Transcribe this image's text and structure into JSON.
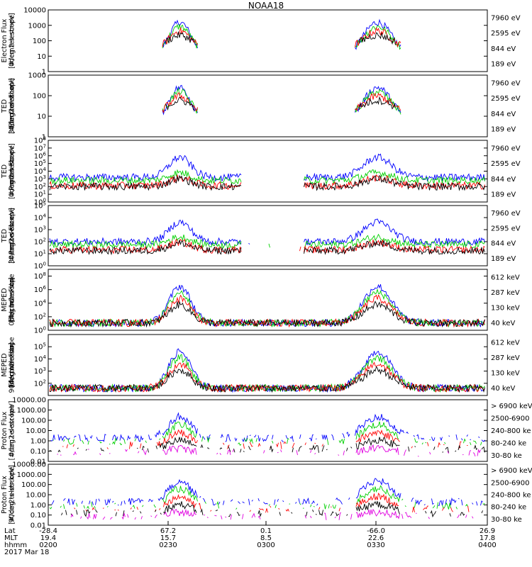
{
  "chart_data": {
    "type": "line",
    "title": "NOAA18",
    "x_axis": {
      "rows": [
        {
          "label": "Lat",
          "values": [
            "-28.4",
            "67.2",
            "0.1",
            "-66.0",
            "26.9"
          ]
        },
        {
          "label": "MLT",
          "values": [
            "19.4",
            "15.7",
            "8.5",
            "22.6",
            "17.8"
          ]
        },
        {
          "label": "hhmm",
          "values": [
            "0200",
            "0230",
            "0300",
            "0330",
            "0400"
          ]
        }
      ],
      "date": "2017 Mar 18"
    },
    "panels": [
      {
        "ylabel": [
          "Electron Flux",
          "0deg telescope",
          "[#/cm2-s-str-eV]"
        ],
        "scale": "log",
        "ylim": [
          1,
          10000
        ],
        "ticks": [
          "1",
          "10",
          "100",
          "1000",
          "10000"
        ],
        "tick_style": "plain",
        "legend": [
          {
            "label": "7960 eV",
            "color": "#000000"
          },
          {
            "label": "2595 eV",
            "color": "#ff0000"
          },
          {
            "label": "844 eV",
            "color": "#00d000"
          },
          {
            "label": "189 eV",
            "color": "#0000ff"
          }
        ]
      },
      {
        "ylabel": [
          "TED",
          "Electron Flux",
          "30deg telescope",
          "[#/cm2-s-str-eV]"
        ],
        "scale": "log",
        "ylim": [
          1,
          1000
        ],
        "ticks": [
          "1",
          "10",
          "100",
          "1000"
        ],
        "tick_style": "plain",
        "legend": [
          {
            "label": "7960 eV",
            "color": "#000000"
          },
          {
            "label": "2595 eV",
            "color": "#ff0000"
          },
          {
            "label": "844 eV",
            "color": "#00d000"
          },
          {
            "label": "189 eV",
            "color": "#0000ff"
          }
        ]
      },
      {
        "ylabel": [
          "TED",
          "Proton Flux",
          "0deg telescope",
          "[#/cm2-s-str-eV]"
        ],
        "scale": "log",
        "ylim": [
          1,
          100000000
        ],
        "ticks": [
          "1",
          "10",
          "100",
          "1000",
          "10000",
          "100000",
          "1000000",
          "10000000",
          "100000000"
        ],
        "tick_style": "power",
        "legend": [
          {
            "label": "7960 eV",
            "color": "#000000"
          },
          {
            "label": "2595 eV",
            "color": "#ff0000"
          },
          {
            "label": "844 eV",
            "color": "#00d000"
          },
          {
            "label": "189 eV",
            "color": "#0000ff"
          }
        ]
      },
      {
        "ylabel": [
          "TED",
          "Proton Flux",
          "30deg telescope",
          "[#/cm2-s-str-eV]"
        ],
        "scale": "log",
        "ylim": [
          1,
          100000
        ],
        "ticks": [
          "1",
          "10",
          "100",
          "1000",
          "10000",
          "100000"
        ],
        "tick_style": "power",
        "legend": [
          {
            "label": "7960 eV",
            "color": "#000000"
          },
          {
            "label": "2595 eV",
            "color": "#ff0000"
          },
          {
            "label": "844 eV",
            "color": "#00d000"
          },
          {
            "label": "189 eV",
            "color": "#0000ff"
          }
        ]
      },
      {
        "ylabel": [
          "MEPED",
          "Electron Flux",
          "0deg telescope",
          "[#/cm2-s-str]"
        ],
        "scale": "log",
        "ylim": [
          1,
          1000000000
        ],
        "ticks": [
          "1",
          "100",
          "10000",
          "1000000",
          "100000000"
        ],
        "tick_style": "power",
        "legend": [
          {
            "label": "612 keV",
            "color": "#000000"
          },
          {
            "label": "287 keV",
            "color": "#ff0000"
          },
          {
            "label": "130 keV",
            "color": "#00d000"
          },
          {
            "label": "40 keV",
            "color": "#0000ff"
          }
        ]
      },
      {
        "ylabel": [
          "MEPED",
          "Electron Flux",
          "90deg telescope",
          "[#/cm2-s-str]"
        ],
        "scale": "log",
        "ylim": [
          10,
          1000000
        ],
        "ticks": [
          "100",
          "1000",
          "10000",
          "100000"
        ],
        "tick_style": "power",
        "legend": [
          {
            "label": "612 keV",
            "color": "#000000"
          },
          {
            "label": "287 keV",
            "color": "#ff0000"
          },
          {
            "label": "130 keV",
            "color": "#00d000"
          },
          {
            "label": "40 keV",
            "color": "#0000ff"
          }
        ]
      },
      {
        "ylabel": [
          "Proton Flux",
          "0deg telescope",
          "[#/cm2-s-str-keV]"
        ],
        "scale": "log",
        "ylim": [
          0.01,
          10000
        ],
        "ticks": [
          "0.01",
          "0.10",
          "1.00",
          "10.00",
          "100.00",
          "1000.00",
          "10000.00"
        ],
        "tick_style": "plain",
        "legend": [
          {
            "label": "> 6900 keV",
            "color": "#e000e0"
          },
          {
            "label": "2500-6900",
            "color": "#000000"
          },
          {
            "label": "240-800 ke",
            "color": "#ff0000"
          },
          {
            "label": "80-240 ke",
            "color": "#00d000"
          },
          {
            "label": "30-80 ke",
            "color": "#0000ff"
          }
        ]
      },
      {
        "ylabel": [
          "Proton Flux",
          "90deg telescope",
          "[#/cm2-s-str-keV]"
        ],
        "scale": "log",
        "ylim": [
          0.01,
          10000
        ],
        "ticks": [
          "0.01",
          "0.10",
          "1.00",
          "10.00",
          "100.00",
          "1000.00",
          "10000.00"
        ],
        "tick_style": "plain",
        "legend": [
          {
            "label": "> 6900 keV",
            "color": "#e000e0"
          },
          {
            "label": "2500-6900",
            "color": "#000000"
          },
          {
            "label": "240-800 ke",
            "color": "#ff0000"
          },
          {
            "label": "80-240 ke",
            "color": "#00d000"
          },
          {
            "label": "30-80 ke",
            "color": "#0000ff"
          }
        ]
      }
    ]
  }
}
